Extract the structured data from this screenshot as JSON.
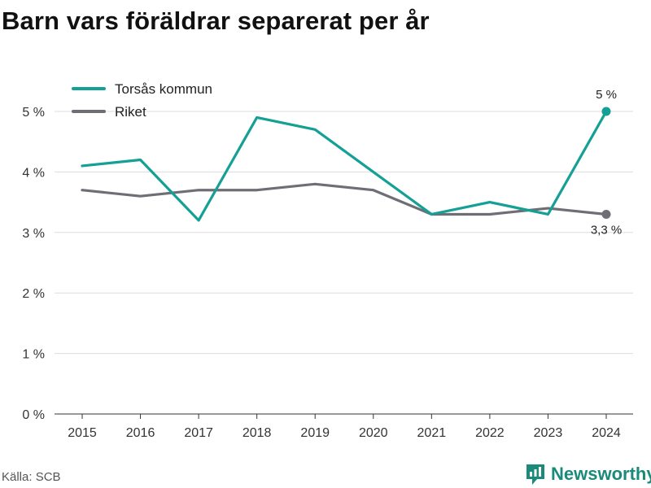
{
  "title": "Barn vars föräldrar separerat per år",
  "source": "Källa: SCB",
  "brand": {
    "name": "Newsworthy",
    "icon": "newsworthy-logo-icon",
    "color": "#1a8a7a"
  },
  "chart_data": {
    "type": "line",
    "title": "Barn vars föräldrar separerat per år",
    "xlabel": "",
    "ylabel": "",
    "x": [
      "2015",
      "2016",
      "2017",
      "2018",
      "2019",
      "2020",
      "2021",
      "2022",
      "2023",
      "2024"
    ],
    "ylim": [
      0,
      5.5
    ],
    "yticks": [
      0,
      1,
      2,
      3,
      4,
      5
    ],
    "ytick_labels": [
      "0 %",
      "1 %",
      "2 %",
      "3 %",
      "4 %",
      "5 %"
    ],
    "grid": true,
    "legend_position": "top-left",
    "series": [
      {
        "name": "Torsås kommun",
        "color": "#14a095",
        "values": [
          4.1,
          4.2,
          3.2,
          4.9,
          4.7,
          4.0,
          3.3,
          3.5,
          3.3,
          5.0
        ],
        "end_label": "5 %"
      },
      {
        "name": "Riket",
        "color": "#6e6e76",
        "values": [
          3.7,
          3.6,
          3.7,
          3.7,
          3.8,
          3.7,
          3.3,
          3.3,
          3.4,
          3.3
        ],
        "end_label": "3,3 %"
      }
    ]
  }
}
